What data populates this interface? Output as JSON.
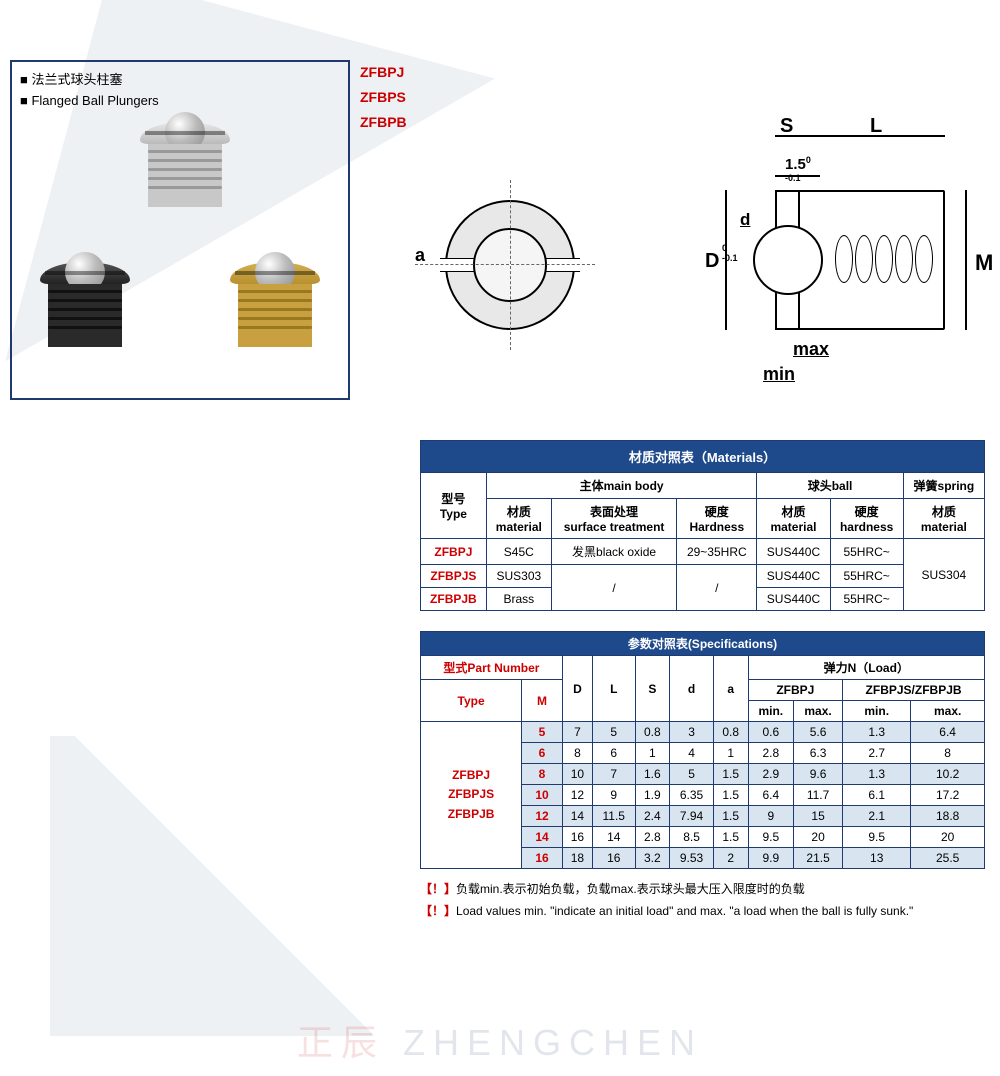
{
  "product": {
    "title_cn": "■ 法兰式球头柱塞",
    "title_en": "■ Flanged Ball Plungers"
  },
  "codes": [
    "ZFBPJ",
    "ZFBPS",
    "ZFBPB"
  ],
  "diagram": {
    "S": "S",
    "L": "L",
    "tol15": "1.5",
    "tol15_sup": "0\n-0.1",
    "d": "d",
    "D": "D",
    "D_sup": "0\n-0.1",
    "M": "M",
    "a": "a",
    "max": "max",
    "min": "min"
  },
  "materials_table": {
    "header": "材质对照表（Materials）",
    "col_type": "型号\nType",
    "col_mainbody": "主体main body",
    "col_ball": "球头ball",
    "col_spring": "弹簧spring",
    "sub_material": "材质\nmaterial",
    "sub_surface": "表面处理\nsurface treatment",
    "sub_hardness_h": "硬度\nHardness",
    "sub_material_b": "材质\nmaterial",
    "sub_hardness_b": "硬度\nhardness",
    "sub_material_s": "材质\nmaterial",
    "rows": [
      {
        "type": "ZFBPJ",
        "mat": "S45C",
        "surf": "发黑black oxide",
        "hard": "29~35HRC",
        "bmat": "SUS440C",
        "bhard": "55HRC~"
      },
      {
        "type": "ZFBPJS",
        "mat": "SUS303",
        "surf": "/",
        "hard": "/",
        "bmat": "SUS440C",
        "bhard": "55HRC~"
      },
      {
        "type": "ZFBPJB",
        "mat": "Brass",
        "surf": "",
        "hard": "",
        "bmat": "SUS440C",
        "bhard": "55HRC~"
      }
    ],
    "spring_mat": "SUS304"
  },
  "spec_table": {
    "header": "参数对照表(Specifications)",
    "part_number": "型式Part Number",
    "col_D": "D",
    "col_L": "L",
    "col_S": "S",
    "col_d": "d",
    "col_a": "a",
    "col_load": "弹力N（Load）",
    "col_type": "Type",
    "col_M": "M",
    "load_zfbpj": "ZFBPJ",
    "load_zfbpjs": "ZFBPJS/ZFBPJB",
    "col_min": "min.",
    "col_max": "max.",
    "type_label": "ZFBPJ\nZFBPJS\nZFBPJB",
    "rows": [
      {
        "M": "5",
        "D": "7",
        "L": "5",
        "S": "0.8",
        "d": "3",
        "a": "0.8",
        "j_min": "0.6",
        "j_max": "5.6",
        "s_min": "1.3",
        "s_max": "6.4",
        "alt": true
      },
      {
        "M": "6",
        "D": "8",
        "L": "6",
        "S": "1",
        "d": "4",
        "a": "1",
        "j_min": "2.8",
        "j_max": "6.3",
        "s_min": "2.7",
        "s_max": "8",
        "alt": false
      },
      {
        "M": "8",
        "D": "10",
        "L": "7",
        "S": "1.6",
        "d": "5",
        "a": "1.5",
        "j_min": "2.9",
        "j_max": "9.6",
        "s_min": "1.3",
        "s_max": "10.2",
        "alt": true
      },
      {
        "M": "10",
        "D": "12",
        "L": "9",
        "S": "1.9",
        "d": "6.35",
        "a": "1.5",
        "j_min": "6.4",
        "j_max": "11.7",
        "s_min": "6.1",
        "s_max": "17.2",
        "alt": false
      },
      {
        "M": "12",
        "D": "14",
        "L": "11.5",
        "S": "2.4",
        "d": "7.94",
        "a": "1.5",
        "j_min": "9",
        "j_max": "15",
        "s_min": "2.1",
        "s_max": "18.8",
        "alt": true
      },
      {
        "M": "14",
        "D": "16",
        "L": "14",
        "S": "2.8",
        "d": "8.5",
        "a": "1.5",
        "j_min": "9.5",
        "j_max": "20",
        "s_min": "9.5",
        "s_max": "20",
        "alt": false
      },
      {
        "M": "16",
        "D": "18",
        "L": "16",
        "S": "3.2",
        "d": "9.53",
        "a": "2",
        "j_min": "9.9",
        "j_max": "21.5",
        "s_min": "13",
        "s_max": "25.5",
        "alt": true
      }
    ]
  },
  "notes": {
    "warn": "【！】",
    "cn": "负载min.表示初始负载，负载max.表示球头最大压入限度时的负载",
    "en": "Load values min. \"indicate an initial load\" and max. \"a load when the ball is fully sunk.\""
  },
  "watermark": {
    "a": "正辰 ",
    "b": "ZHENGCHEN"
  }
}
